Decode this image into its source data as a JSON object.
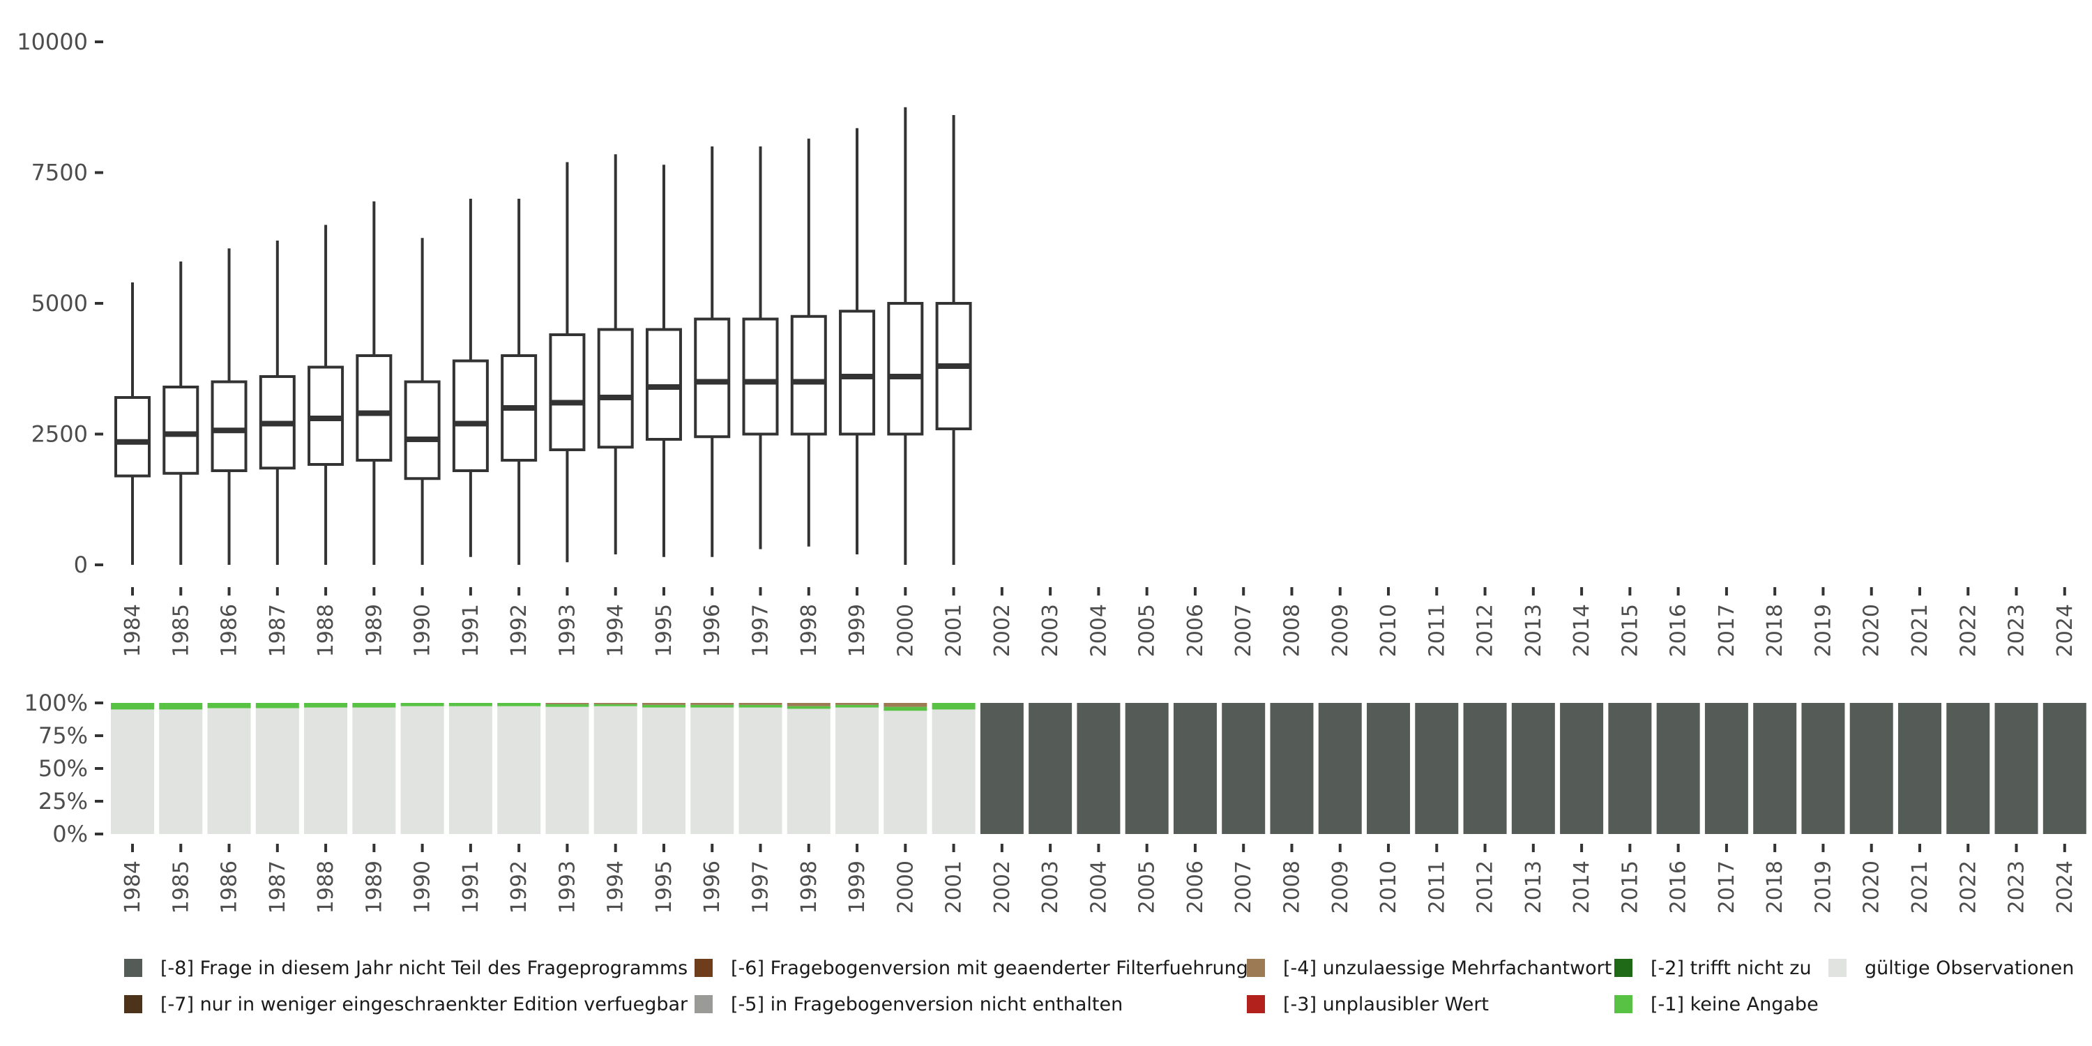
{
  "chart_data": [
    {
      "type": "boxplot",
      "title": "",
      "xlabel": "",
      "ylabel": "",
      "ylim": [
        0,
        10000
      ],
      "yticks": [
        "0",
        "2500",
        "5000",
        "7500",
        "10000"
      ],
      "categories": [
        "1984",
        "1985",
        "1986",
        "1987",
        "1988",
        "1989",
        "1990",
        "1991",
        "1992",
        "1993",
        "1994",
        "1995",
        "1996",
        "1997",
        "1998",
        "1999",
        "2000",
        "2001",
        "2002",
        "2003",
        "2004",
        "2005",
        "2006",
        "2007",
        "2008",
        "2009",
        "2010",
        "2011",
        "2012",
        "2013",
        "2014",
        "2015",
        "2016",
        "2017",
        "2018",
        "2019",
        "2020",
        "2021",
        "2022",
        "2023",
        "2024"
      ],
      "boxes": [
        {
          "year": "1984",
          "min": 0,
          "q1": 1700,
          "median": 2350,
          "q3": 3200,
          "max": 5400
        },
        {
          "year": "1985",
          "min": 0,
          "q1": 1750,
          "median": 2500,
          "q3": 3400,
          "max": 5800
        },
        {
          "year": "1986",
          "min": 0,
          "q1": 1800,
          "median": 2570,
          "q3": 3500,
          "max": 6050
        },
        {
          "year": "1987",
          "min": 0,
          "q1": 1850,
          "median": 2700,
          "q3": 3600,
          "max": 6200
        },
        {
          "year": "1988",
          "min": 0,
          "q1": 1920,
          "median": 2800,
          "q3": 3780,
          "max": 6500
        },
        {
          "year": "1989",
          "min": 0,
          "q1": 2000,
          "median": 2900,
          "q3": 4000,
          "max": 6950
        },
        {
          "year": "1990",
          "min": 0,
          "q1": 1650,
          "median": 2400,
          "q3": 3500,
          "max": 6250
        },
        {
          "year": "1991",
          "min": 150,
          "q1": 1800,
          "median": 2700,
          "q3": 3900,
          "max": 7000
        },
        {
          "year": "1992",
          "min": 0,
          "q1": 2000,
          "median": 3000,
          "q3": 4000,
          "max": 7000
        },
        {
          "year": "1993",
          "min": 50,
          "q1": 2200,
          "median": 3100,
          "q3": 4400,
          "max": 7700
        },
        {
          "year": "1994",
          "min": 200,
          "q1": 2250,
          "median": 3200,
          "q3": 4500,
          "max": 7850
        },
        {
          "year": "1995",
          "min": 150,
          "q1": 2400,
          "median": 3400,
          "q3": 4500,
          "max": 7650
        },
        {
          "year": "1996",
          "min": 150,
          "q1": 2450,
          "median": 3500,
          "q3": 4700,
          "max": 8000
        },
        {
          "year": "1997",
          "min": 300,
          "q1": 2500,
          "median": 3500,
          "q3": 4700,
          "max": 8000
        },
        {
          "year": "1998",
          "min": 350,
          "q1": 2500,
          "median": 3500,
          "q3": 4750,
          "max": 8150
        },
        {
          "year": "1999",
          "min": 200,
          "q1": 2500,
          "median": 3600,
          "q3": 4850,
          "max": 8350
        },
        {
          "year": "2000",
          "min": 0,
          "q1": 2500,
          "median": 3600,
          "q3": 5000,
          "max": 8750
        },
        {
          "year": "2001",
          "min": 0,
          "q1": 2600,
          "median": 3800,
          "q3": 5000,
          "max": 8600
        }
      ]
    },
    {
      "type": "stacked-bar",
      "title": "",
      "ylim": [
        0,
        1
      ],
      "yticks": [
        "0%",
        "25%",
        "50%",
        "75%",
        "100%"
      ],
      "categories": [
        "1984",
        "1985",
        "1986",
        "1987",
        "1988",
        "1989",
        "1990",
        "1991",
        "1992",
        "1993",
        "1994",
        "1995",
        "1996",
        "1997",
        "1998",
        "1999",
        "2000",
        "2001",
        "2002",
        "2003",
        "2004",
        "2005",
        "2006",
        "2007",
        "2008",
        "2009",
        "2010",
        "2011",
        "2012",
        "2013",
        "2014",
        "2015",
        "2016",
        "2017",
        "2018",
        "2019",
        "2020",
        "2021",
        "2022",
        "2023",
        "2024"
      ],
      "series": [
        {
          "name": "gültige Observationen",
          "color": "#e0e3df",
          "values": [
            0.95,
            0.95,
            0.96,
            0.96,
            0.965,
            0.965,
            0.975,
            0.975,
            0.975,
            0.97,
            0.975,
            0.965,
            0.965,
            0.965,
            0.955,
            0.965,
            0.94,
            0.95,
            0,
            0,
            0,
            0,
            0,
            0,
            0,
            0,
            0,
            0,
            0,
            0,
            0,
            0,
            0,
            0,
            0,
            0,
            0,
            0,
            0,
            0,
            0
          ]
        },
        {
          "name": "[-1] keine Angabe",
          "color": "#58c244",
          "values": [
            0.05,
            0.05,
            0.04,
            0.04,
            0.035,
            0.035,
            0.025,
            0.025,
            0.025,
            0.02,
            0.015,
            0.02,
            0.02,
            0.02,
            0.02,
            0.02,
            0.03,
            0.05,
            0,
            0,
            0,
            0,
            0,
            0,
            0,
            0,
            0,
            0,
            0,
            0,
            0,
            0,
            0,
            0,
            0,
            0,
            0,
            0,
            0,
            0,
            0
          ]
        },
        {
          "name": "[-4] unzulaessige Mehrfachantwort",
          "color": "#9b7a54",
          "values": [
            0,
            0,
            0,
            0,
            0,
            0,
            0,
            0,
            0,
            0.01,
            0.01,
            0.015,
            0.015,
            0.015,
            0.025,
            0.015,
            0.03,
            0,
            0,
            0,
            0,
            0,
            0,
            0,
            0,
            0,
            0,
            0,
            0,
            0,
            0,
            0,
            0,
            0,
            0,
            0,
            0,
            0,
            0,
            0,
            0
          ]
        },
        {
          "name": "[-8] Frage in diesem Jahr nicht Teil des Frageprogramms",
          "color": "#555b57",
          "values": [
            0,
            0,
            0,
            0,
            0,
            0,
            0,
            0,
            0,
            0,
            0,
            0,
            0,
            0,
            0,
            0,
            0,
            0,
            1,
            1,
            1,
            1,
            1,
            1,
            1,
            1,
            1,
            1,
            1,
            1,
            1,
            1,
            1,
            1,
            1,
            1,
            1,
            1,
            1,
            1,
            1
          ]
        }
      ]
    }
  ],
  "legend": [
    {
      "label": "[-8] Frage in diesem Jahr nicht Teil des Frageprogramms",
      "color": "#555b57"
    },
    {
      "label": "[-7] nur in weniger eingeschraenkter Edition verfuegbar",
      "color": "#4d3319"
    },
    {
      "label": "[-6] Fragebogenversion mit geaenderter Filterfuehrung",
      "color": "#6e3d1c"
    },
    {
      "label": "[-5] in Fragebogenversion nicht enthalten",
      "color": "#9a9a96"
    },
    {
      "label": "[-4] unzulaessige Mehrfachantwort",
      "color": "#9b7a54"
    },
    {
      "label": "[-3] unplausibler Wert",
      "color": "#b3211c"
    },
    {
      "label": "[-2] trifft nicht zu",
      "color": "#1f6a16"
    },
    {
      "label": "[-1] keine Angabe",
      "color": "#58c244"
    },
    {
      "label": "gültige Observationen",
      "color": "#e0e3df"
    }
  ]
}
